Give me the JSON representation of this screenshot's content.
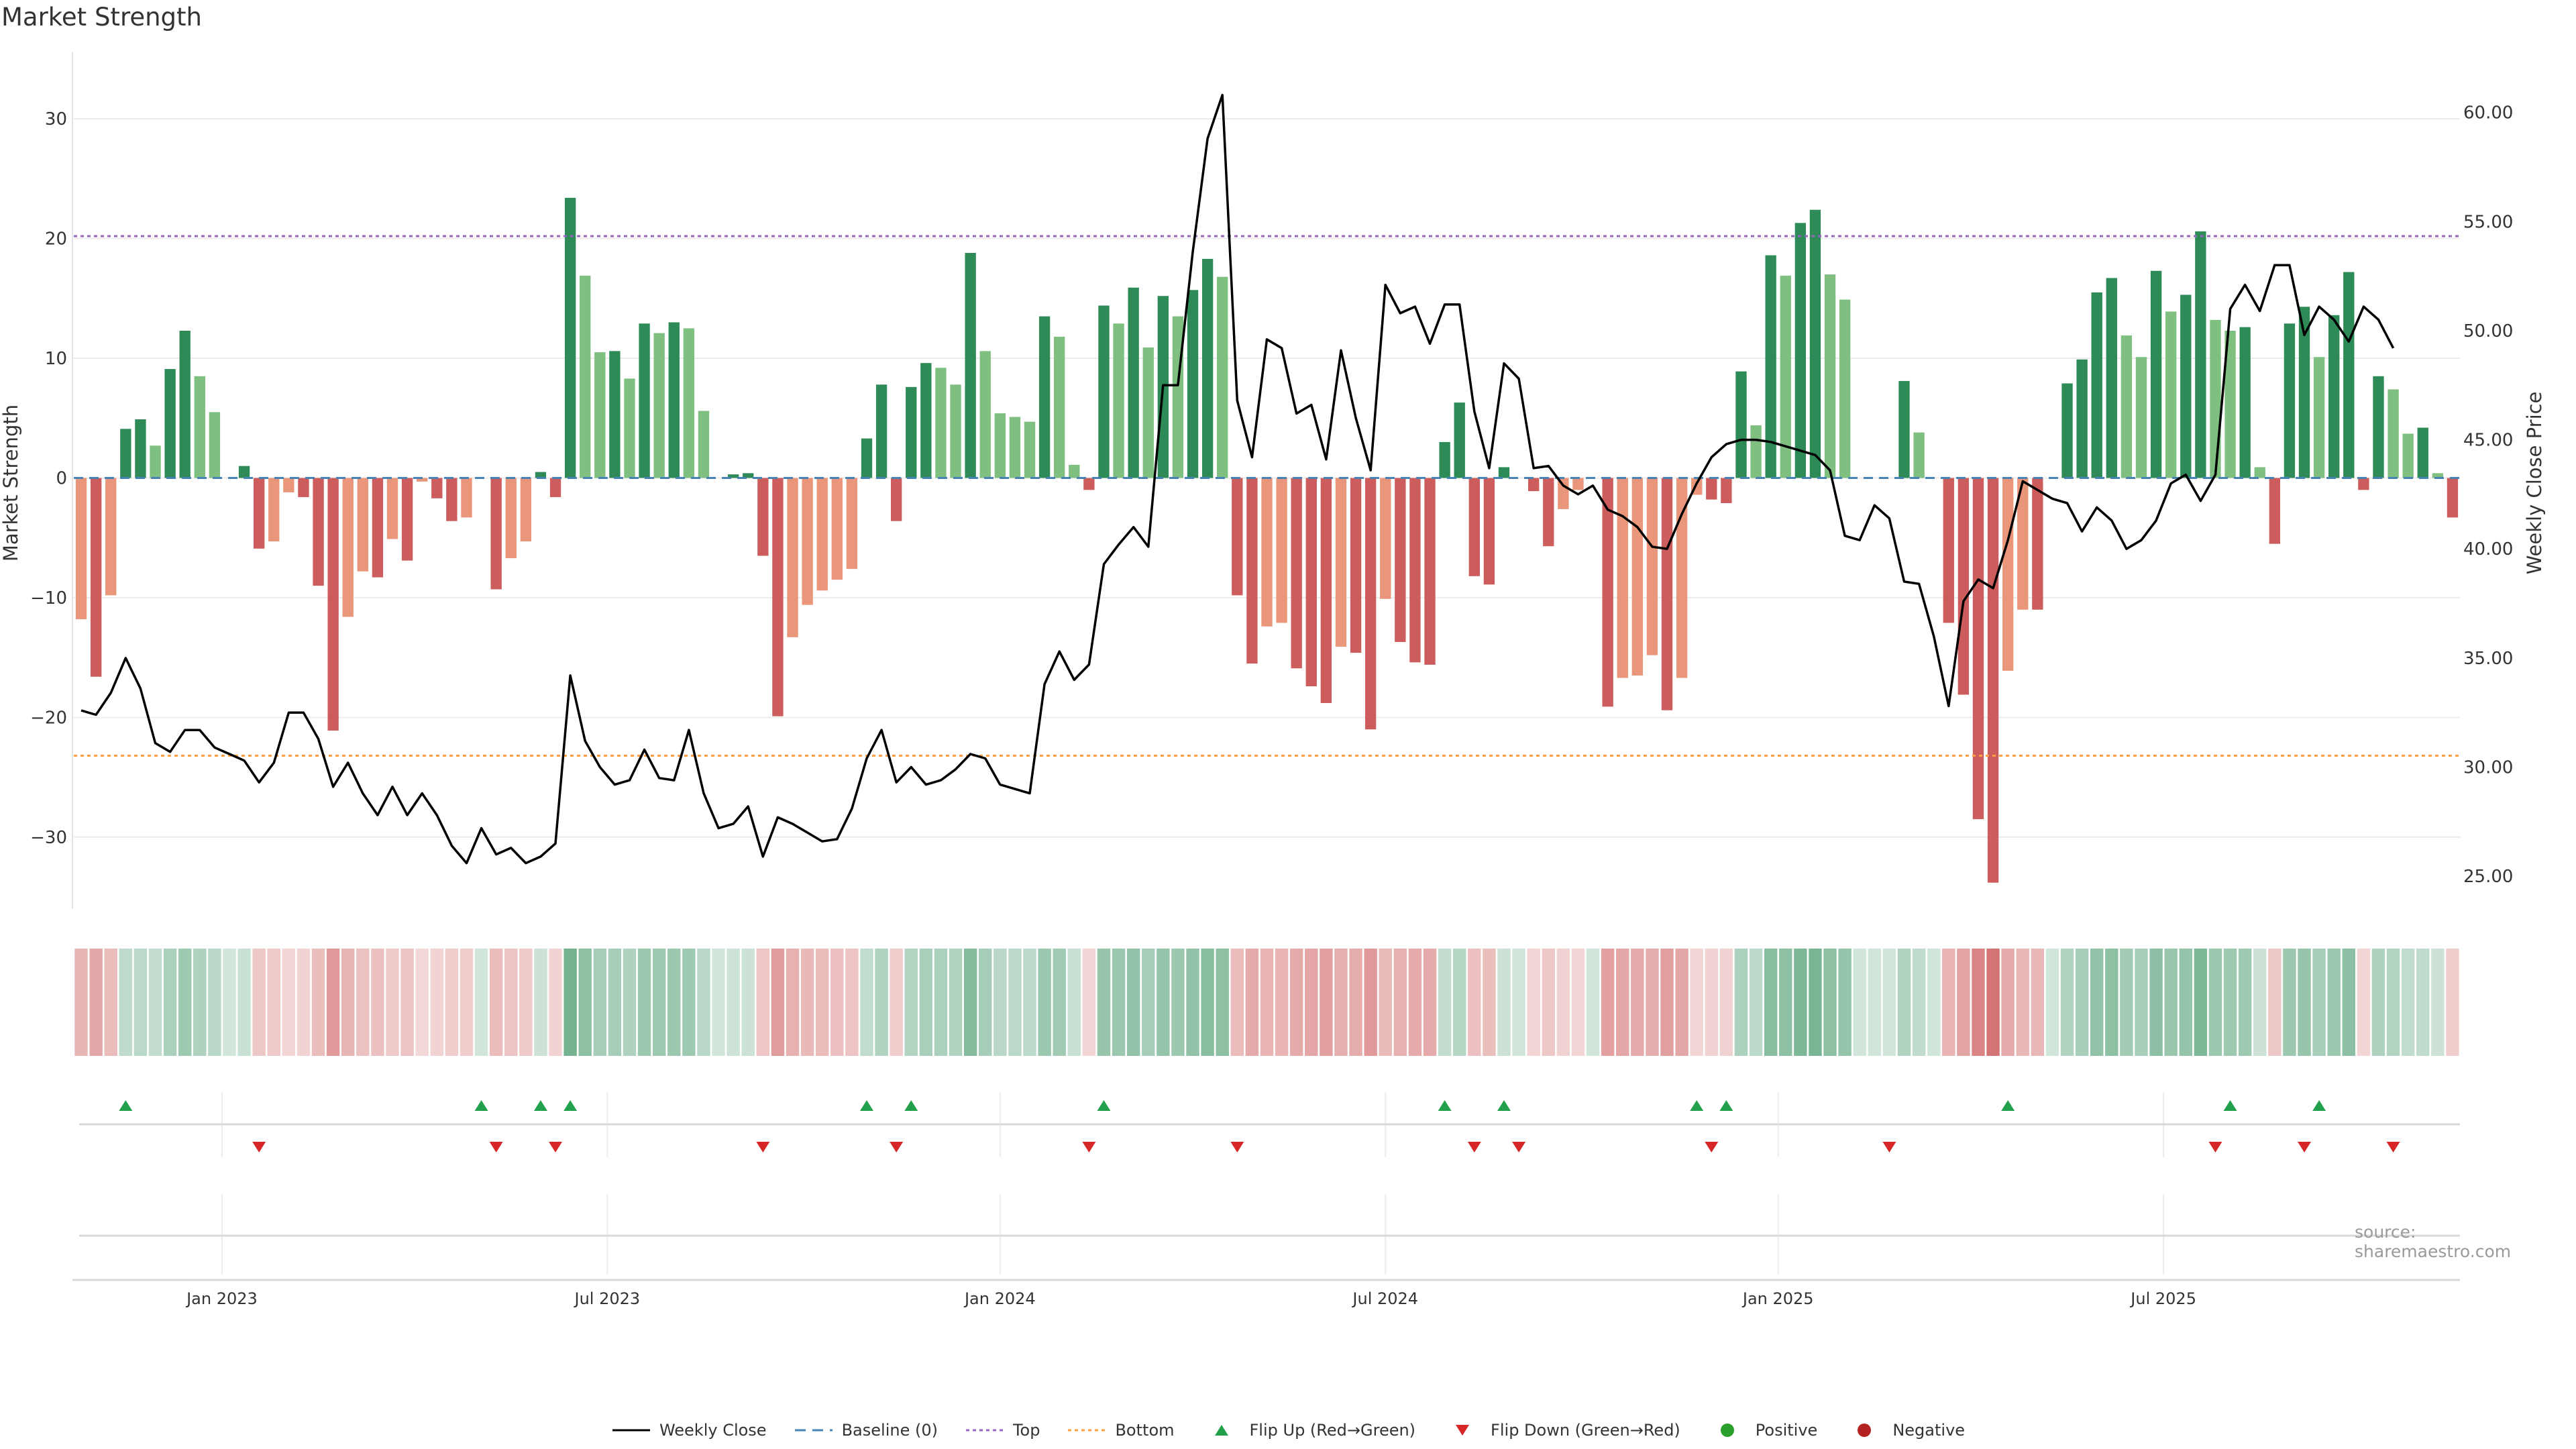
{
  "chart_data": {
    "type": "bar+line",
    "title": "Market Strength",
    "ylabel_left": "Market Strength",
    "ylabel_right": "Weekly Close Price",
    "ylim_left": [
      -36,
      36
    ],
    "ylim_right": [
      23.5,
      63
    ],
    "yticks_left": [
      -30,
      -20,
      -10,
      0,
      10,
      20,
      30
    ],
    "yticks_right": [
      "25.00",
      "30.00",
      "35.00",
      "40.00",
      "45.00",
      "50.00",
      "55.00",
      "60.00"
    ],
    "x_tick_labels": [
      "Jan 2023",
      "Jul 2023",
      "Jan 2024",
      "Jul 2024",
      "Jan 2025",
      "Jul 2025"
    ],
    "x_tick_weeks": [
      9.5,
      35.5,
      62,
      88,
      114.5,
      140.5
    ],
    "top_line": 20.2,
    "bottom_line": -23.2,
    "strength": [
      -11.8,
      -16.6,
      -9.8,
      4.1,
      4.9,
      2.7,
      9.1,
      12.3,
      8.5,
      5.5,
      0,
      1,
      -5.9,
      -5.3,
      -1.2,
      -1.6,
      -9,
      -21.1,
      -11.6,
      -7.8,
      -8.3,
      -5.1,
      -6.9,
      -0.3,
      -1.7,
      -3.6,
      -3.3,
      0,
      -9.3,
      -6.7,
      -5.3,
      0.5,
      -1.6,
      23.4,
      16.9,
      10.5,
      10.6,
      8.3,
      12.9,
      12.1,
      13,
      12.5,
      5.6,
      0,
      0.3,
      0.4,
      -6.5,
      -19.9,
      -13.3,
      -10.6,
      -9.4,
      -8.5,
      -7.6,
      3.3,
      7.8,
      -3.6,
      7.6,
      9.6,
      9.2,
      7.8,
      18.8,
      10.6,
      5.4,
      5.1,
      4.7,
      13.5,
      11.8,
      1.1,
      -1,
      14.4,
      12.9,
      15.9,
      10.9,
      15.2,
      13.5,
      15.7,
      18.3,
      16.8,
      -9.8,
      -15.5,
      -12.4,
      -12.1,
      -15.9,
      -17.4,
      -18.8,
      -14.1,
      -14.6,
      -21,
      -10.1,
      -13.7,
      -15.4,
      -15.6,
      3,
      6.3,
      -8.2,
      -8.9,
      0.9,
      0,
      -1.1,
      -5.7,
      -2.6,
      -1,
      0,
      -19.1,
      -16.7,
      -16.5,
      -14.8,
      -19.4,
      -16.7,
      -1.4,
      -1.8,
      -2.1,
      8.9,
      4.4,
      18.6,
      16.9,
      21.3,
      22.4,
      17,
      14.9,
      0,
      0,
      0,
      8.1,
      3.8,
      0,
      -12.1,
      -18.1,
      -28.5,
      -33.8,
      -16.1,
      -11,
      -11,
      0,
      7.9,
      9.9,
      15.5,
      16.7,
      11.9,
      10.1,
      17.3,
      13.9,
      15.3,
      20.6,
      13.2,
      12.3,
      12.6,
      0.9,
      -5.5,
      12.9,
      14.3,
      10.1,
      13.6,
      17.2,
      -1,
      8.5,
      7.4,
      3.7,
      4.2,
      0.4,
      -3.3
    ],
    "weekly_close": [
      32.6,
      32.4,
      33.4,
      35,
      33.6,
      31.1,
      30.7,
      31.7,
      31.7,
      30.9,
      30.6,
      30.3,
      29.3,
      30.2,
      32.5,
      32.5,
      31.3,
      29.1,
      30.2,
      28.8,
      27.8,
      29.1,
      27.8,
      28.8,
      27.8,
      26.4,
      25.6,
      27.2,
      26,
      26.3,
      25.6,
      25.9,
      26.5,
      34.2,
      31.2,
      30,
      29.2,
      29.4,
      30.8,
      29.5,
      29.4,
      31.7,
      28.8,
      27.2,
      27.4,
      28.2,
      25.9,
      27.7,
      27.4,
      27,
      26.6,
      26.7,
      28.1,
      30.4,
      31.7,
      29.3,
      30,
      29.2,
      29.4,
      29.9,
      30.6,
      30.4,
      29.2,
      29,
      28.8,
      33.8,
      35.3,
      34,
      34.7,
      39.3,
      40.2,
      41,
      40.1,
      47.5,
      47.5,
      53.6,
      58.8,
      60.8,
      46.8,
      44.2,
      49.6,
      49.2,
      46.2,
      46.6,
      44.1,
      49.1,
      46,
      43.6,
      52.1,
      50.8,
      51.1,
      49.4,
      51.2,
      51.2,
      46.3,
      43.7,
      48.5,
      47.8,
      43.7,
      43.8,
      42.9,
      42.5,
      42.9,
      41.8,
      41.5,
      41,
      40.1,
      40,
      41.6,
      43,
      44.2,
      44.8,
      45,
      45,
      44.9,
      44.7,
      44.5,
      44.3,
      43.6,
      40.6,
      40.4,
      42,
      41.4,
      38.5,
      38.4,
      36,
      32.8,
      37.6,
      38.6,
      38.2,
      40.4,
      43.1,
      42.7,
      42.3,
      42.1,
      40.8,
      41.9,
      41.3,
      40,
      40.4,
      41.3,
      43,
      43.4,
      42.2,
      43.4,
      51,
      52.1,
      50.9,
      53,
      53,
      49.8,
      51.1,
      50.5,
      49.5,
      51.1,
      50.5,
      49.2
    ],
    "flip_up_weeks": [
      3,
      27,
      31,
      33,
      53,
      56,
      69,
      92,
      96,
      109,
      111,
      130,
      145,
      151
    ],
    "flip_down_weeks": [
      12,
      28,
      32,
      46,
      55,
      68,
      78,
      94,
      97,
      110,
      122,
      144,
      150,
      156
    ],
    "series": [
      {
        "name": "Weekly Close",
        "type": "line"
      },
      {
        "name": "Market Strength",
        "type": "bar"
      }
    ]
  },
  "source": "source: sharemaestro.com",
  "legend": {
    "items": [
      {
        "key": "close",
        "label": "Weekly Close"
      },
      {
        "key": "baseline",
        "label": "Baseline (0)"
      },
      {
        "key": "top",
        "label": "Top"
      },
      {
        "key": "bottom",
        "label": "Bottom"
      },
      {
        "key": "flipup",
        "label": "Flip Up (Red→Green)"
      },
      {
        "key": "flipdown",
        "label": "Flip Down (Green→Red)"
      },
      {
        "key": "positive",
        "label": "Positive"
      },
      {
        "key": "negative",
        "label": "Negative"
      }
    ]
  },
  "colors": {
    "pos_strong": "#2e8b57",
    "pos_light": "#7fbf7f",
    "neg_strong": "#cd5c5c",
    "neg_light": "#e9967a",
    "line": "#000000",
    "baseline": "#4682b4",
    "top": "#9467bd",
    "bottom": "#ff9f40",
    "flip_up": "#22a04b",
    "flip_down": "#d62728",
    "positive_dot": "#2ca02c",
    "negative_dot": "#b22222",
    "grid": "#ececec",
    "axis_text": "#333333"
  }
}
